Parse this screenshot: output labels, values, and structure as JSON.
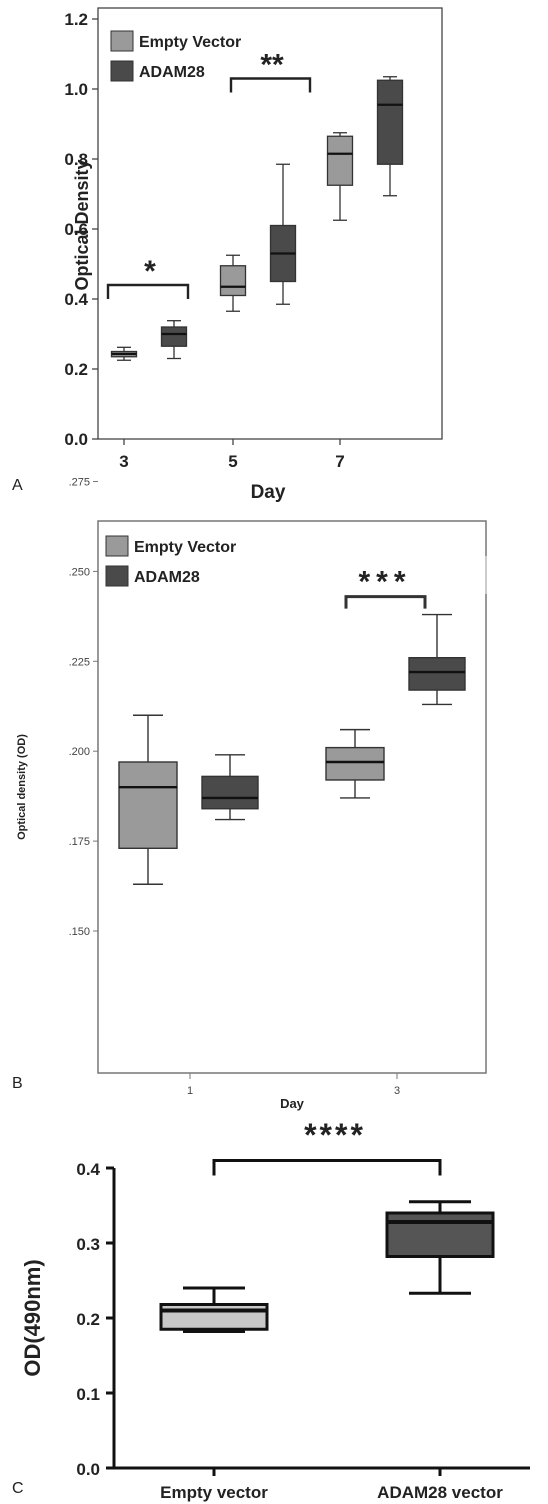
{
  "panels": {
    "a": "A",
    "b": "B",
    "c": "C"
  },
  "colors": {
    "empty_vector": "#9a9a9a",
    "adam28": "#4a4a4a",
    "empty_vector_c": "#c8c8c8",
    "adam28_c": "#555555"
  },
  "chart_data": [
    {
      "type": "box",
      "panel": "A",
      "xlabel": "Day",
      "ylabel": "Optical Density",
      "ylim": [
        0.0,
        1.2
      ],
      "yticks": [
        "0.0",
        "0.2",
        "0.4",
        "0.6",
        "0.8",
        "1.0",
        "1.2"
      ],
      "categories": [
        "3",
        "5",
        "7"
      ],
      "legend": {
        "position": "top-left",
        "entries": [
          "Empty Vector",
          "ADAM28"
        ]
      },
      "series": [
        {
          "name": "Empty Vector",
          "color": "#9a9a9a",
          "boxes": [
            {
              "category": "3",
              "min": 0.225,
              "q1": 0.235,
              "median": 0.243,
              "q3": 0.25,
              "max": 0.262
            },
            {
              "category": "5",
              "min": 0.365,
              "q1": 0.41,
              "median": 0.435,
              "q3": 0.495,
              "max": 0.525
            },
            {
              "category": "7",
              "min": 0.625,
              "q1": 0.725,
              "median": 0.815,
              "q3": 0.865,
              "max": 0.875
            }
          ]
        },
        {
          "name": "ADAM28",
          "color": "#4a4a4a",
          "boxes": [
            {
              "category": "3",
              "min": 0.23,
              "q1": 0.265,
              "median": 0.3,
              "q3": 0.32,
              "max": 0.338
            },
            {
              "category": "5",
              "min": 0.385,
              "q1": 0.45,
              "median": 0.53,
              "q3": 0.61,
              "max": 0.785
            },
            {
              "category": "7",
              "min": 0.695,
              "q1": 0.785,
              "median": 0.955,
              "q3": 1.025,
              "max": 1.035
            }
          ]
        }
      ],
      "annotations": [
        {
          "text": "*",
          "category": "3",
          "y": 0.44
        },
        {
          "text": "**",
          "category": "5",
          "y": 1.03
        }
      ]
    },
    {
      "type": "box",
      "panel": "B",
      "xlabel": "Day",
      "ylabel": "Optical density (OD)",
      "ylim": [
        0.135,
        0.285
      ],
      "yticks": [
        ".150",
        ".175",
        ".200",
        ".225",
        ".250",
        ".275"
      ],
      "categories": [
        "1",
        "3"
      ],
      "legend": {
        "position": "top-left",
        "entries": [
          "Empty Vector",
          "ADAM28"
        ]
      },
      "series": [
        {
          "name": "Empty Vector",
          "color": "#9a9a9a",
          "boxes": [
            {
              "category": "1",
              "min": 0.163,
              "q1": 0.173,
              "median": 0.19,
              "q3": 0.197,
              "max": 0.21
            },
            {
              "category": "3",
              "min": 0.187,
              "q1": 0.192,
              "median": 0.197,
              "q3": 0.201,
              "max": 0.206
            }
          ]
        },
        {
          "name": "ADAM28",
          "color": "#4a4a4a",
          "boxes": [
            {
              "category": "1",
              "min": 0.181,
              "q1": 0.184,
              "median": 0.187,
              "q3": 0.193,
              "max": 0.199
            },
            {
              "category": "3",
              "min": 0.213,
              "q1": 0.217,
              "median": 0.222,
              "q3": 0.226,
              "max": 0.238
            }
          ]
        }
      ],
      "annotations": [
        {
          "text": "***",
          "category": "3",
          "y": 0.243
        }
      ]
    },
    {
      "type": "box",
      "panel": "C",
      "xlabel": "",
      "ylabel": "OD(490nm)",
      "ylim": [
        0.0,
        0.4
      ],
      "yticks": [
        "0.0",
        "0.1",
        "0.2",
        "0.3",
        "0.4"
      ],
      "categories": [
        "Empty vector",
        "ADAM28 vector"
      ],
      "series": [
        {
          "name": "",
          "boxes": [
            {
              "category": "Empty vector",
              "color": "#c8c8c8",
              "min": 0.182,
              "q1": 0.185,
              "median": 0.21,
              "q3": 0.218,
              "max": 0.24
            },
            {
              "category": "ADAM28 vector",
              "color": "#555555",
              "min": 0.233,
              "q1": 0.282,
              "median": 0.328,
              "q3": 0.34,
              "max": 0.355
            }
          ]
        }
      ],
      "annotations": [
        {
          "text": "****",
          "y": 0.41
        }
      ]
    }
  ]
}
